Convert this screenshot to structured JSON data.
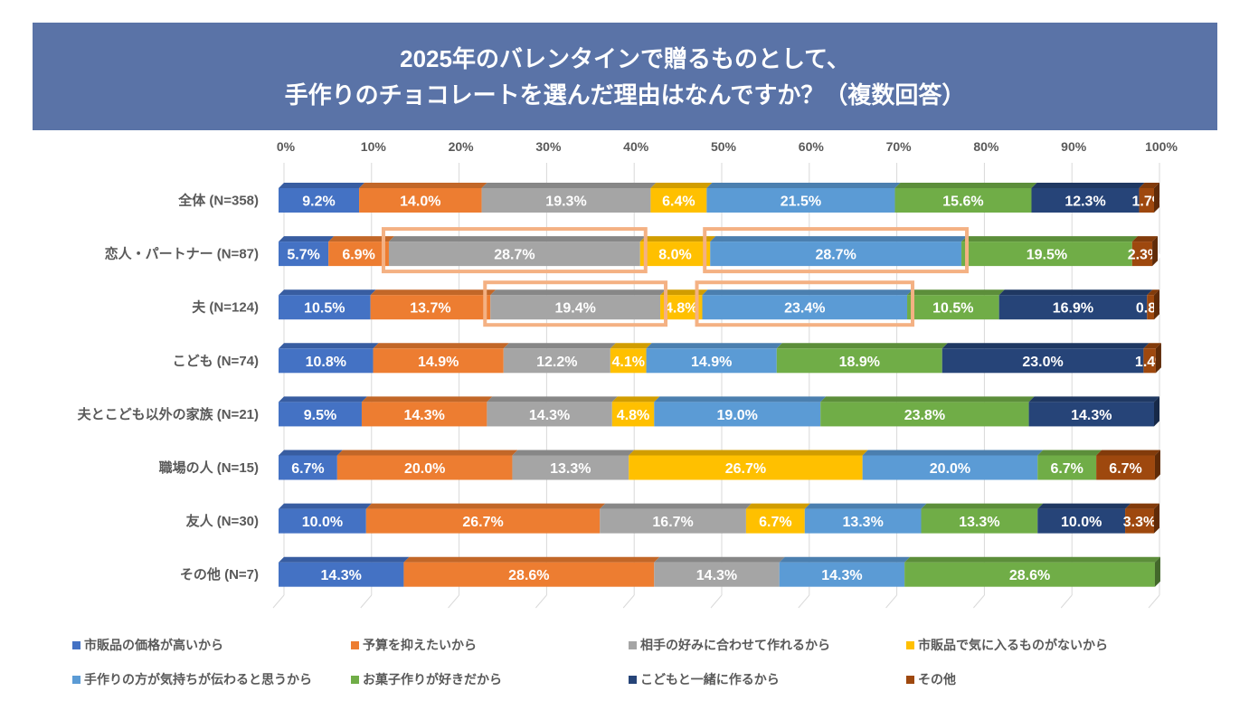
{
  "title": {
    "line1": "2025年のバレンタインで贈るものとして、",
    "line2": "手作りのチョコレートを選んだ理由はなんですか？（複数回答）"
  },
  "chart_data": {
    "type": "bar",
    "orientation": "horizontal",
    "stacked": "100%",
    "title": "2025年のバレンタインで贈るものとして、手作りのチョコレートを選んだ理由はなんですか？（複数回答）",
    "xlabel": "",
    "ylabel": "",
    "xlim": [
      0,
      100
    ],
    "x_ticks": [
      "0%",
      "10%",
      "20%",
      "30%",
      "40%",
      "50%",
      "60%",
      "70%",
      "80%",
      "90%",
      "100%"
    ],
    "grid": true,
    "legend_position": "bottom",
    "categories": [
      "全体 (N=358)",
      "恋人・パートナー (N=87)",
      "夫 (N=124)",
      "こども (N=74)",
      "夫とこども以外の家族 (N=21)",
      "職場の人 (N=15)",
      "友人 (N=30)",
      "その他 (N=7)"
    ],
    "series": [
      {
        "name": "市販品の価格が高いから",
        "color": "#4472c4",
        "values": [
          9.2,
          5.7,
          10.5,
          10.8,
          9.5,
          6.7,
          10.0,
          14.3
        ]
      },
      {
        "name": "予算を抑えたいから",
        "color": "#ed7d31",
        "values": [
          14.0,
          6.9,
          13.7,
          14.9,
          14.3,
          20.0,
          26.7,
          28.6
        ]
      },
      {
        "name": "相手の好みに合わせて作れるから",
        "color": "#a5a5a5",
        "values": [
          19.3,
          28.7,
          19.4,
          12.2,
          14.3,
          13.3,
          16.7,
          14.3
        ]
      },
      {
        "name": "市販品で気に入るものがないから",
        "color": "#ffc000",
        "values": [
          6.4,
          8.0,
          4.8,
          4.1,
          4.8,
          26.7,
          6.7,
          0
        ]
      },
      {
        "name": "手作りの方が気持ちが伝わると思うから",
        "color": "#5b9bd5",
        "values": [
          21.5,
          28.7,
          23.4,
          14.9,
          19.0,
          20.0,
          13.3,
          14.3
        ]
      },
      {
        "name": "お菓子作りが好きだから",
        "color": "#70ad47",
        "values": [
          15.6,
          19.5,
          10.5,
          18.9,
          23.8,
          6.7,
          13.3,
          28.6
        ]
      },
      {
        "name": "こどもと一緒に作るから",
        "color": "#264478",
        "values": [
          12.3,
          0,
          16.9,
          23.0,
          14.3,
          0,
          10.0,
          0
        ]
      },
      {
        "name": "その他",
        "color": "#9e480e",
        "values": [
          1.7,
          2.3,
          0.8,
          1.4,
          0,
          6.7,
          3.3,
          0
        ]
      }
    ],
    "highlights": [
      {
        "category": "恋人・パートナー (N=87)",
        "series": "相手の好みに合わせて作れるから"
      },
      {
        "category": "恋人・パートナー (N=87)",
        "series": "手作りの方が気持ちが伝わると思うから"
      },
      {
        "category": "夫 (N=124)",
        "series": "相手の好みに合わせて作れるから"
      },
      {
        "category": "夫 (N=124)",
        "series": "手作りの方が気持ちが伝わると思うから"
      }
    ],
    "highlight_color": "#f4b183"
  }
}
